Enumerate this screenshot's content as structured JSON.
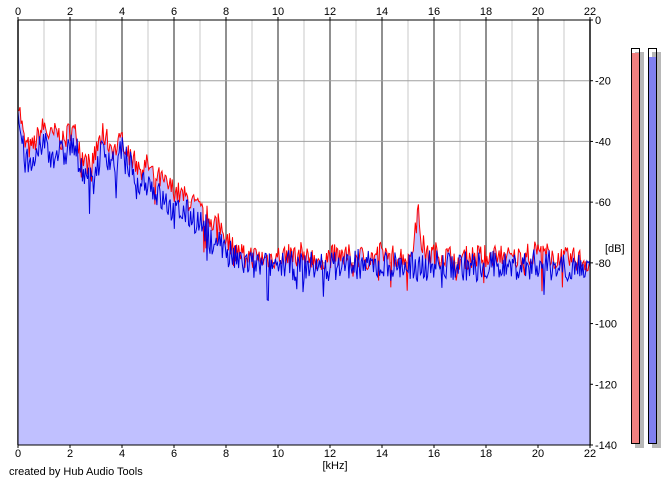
{
  "credit": "created by Hub Audio Tools",
  "colors": {
    "background": "#ffffff",
    "fill": "#c0c0ff",
    "left_channel": "#ff0000",
    "right_channel": "#0000dd",
    "grid": "#a0a0a0",
    "meter_left": "#f08080",
    "meter_right": "#8080f0"
  },
  "meters": {
    "left_level_fraction": 0.99,
    "right_level_fraction": 0.98
  },
  "chart_data": {
    "type": "line",
    "title": "",
    "xlabel": "[kHz]",
    "ylabel": "[dB]",
    "xlim": [
      0,
      22
    ],
    "ylim": [
      -140,
      0
    ],
    "x_ticks": [
      "0",
      "2",
      "4",
      "6",
      "8",
      "10",
      "12",
      "14",
      "16",
      "18",
      "20",
      "22"
    ],
    "y_ticks": [
      "0",
      "-20",
      "-40",
      "-60",
      "-80",
      "-100",
      "-120",
      "-140"
    ],
    "grid": true,
    "x": [
      0,
      0.25,
      0.5,
      0.75,
      1,
      1.25,
      1.5,
      1.75,
      2,
      2.25,
      2.5,
      2.75,
      3,
      3.25,
      3.5,
      3.75,
      4,
      4.25,
      4.5,
      4.75,
      5,
      5.25,
      5.5,
      5.75,
      6,
      6.25,
      6.5,
      6.75,
      7,
      7.25,
      7.5,
      7.75,
      8,
      8.25,
      8.5,
      8.75,
      9,
      9.5,
      10,
      10.5,
      11,
      11.5,
      12,
      12.5,
      13,
      13.5,
      14,
      14.5,
      15,
      15.25,
      15.4,
      15.5,
      15.75,
      16,
      16.5,
      17,
      17.5,
      18,
      18.5,
      19,
      19.5,
      20,
      20.5,
      21,
      21.5,
      22
    ],
    "series": [
      {
        "name": "",
        "color": "#ff0000",
        "values": [
          -25,
          -40,
          -42,
          -38,
          -34,
          -38,
          -36,
          -40,
          -35,
          -37,
          -45,
          -47,
          -43,
          -36,
          -40,
          -42,
          -38,
          -42,
          -46,
          -48,
          -47,
          -50,
          -52,
          -54,
          -55,
          -57,
          -58,
          -60,
          -62,
          -64,
          -65,
          -67,
          -70,
          -74,
          -76,
          -76,
          -77,
          -78,
          -77,
          -77,
          -76,
          -78,
          -77,
          -77,
          -77,
          -78,
          -76,
          -77,
          -77,
          -72,
          -60,
          -72,
          -77,
          -76,
          -77,
          -78,
          -77,
          -77,
          -76,
          -78,
          -77,
          -75,
          -77,
          -78,
          -78,
          -79
        ]
      },
      {
        "name": "",
        "color": "#0000dd",
        "values": [
          -30,
          -45,
          -48,
          -44,
          -38,
          -44,
          -42,
          -44,
          -40,
          -42,
          -48,
          -50,
          -48,
          -42,
          -44,
          -46,
          -42,
          -46,
          -50,
          -52,
          -52,
          -55,
          -58,
          -60,
          -62,
          -62,
          -63,
          -64,
          -66,
          -68,
          -70,
          -72,
          -75,
          -77,
          -79,
          -79,
          -80,
          -80,
          -79,
          -80,
          -80,
          -80,
          -80,
          -80,
          -79,
          -80,
          -80,
          -80,
          -80,
          -80,
          -80,
          -80,
          -80,
          -79,
          -80,
          -80,
          -80,
          -80,
          -80,
          -80,
          -80,
          -79,
          -80,
          -80,
          -80,
          -81
        ]
      }
    ]
  }
}
